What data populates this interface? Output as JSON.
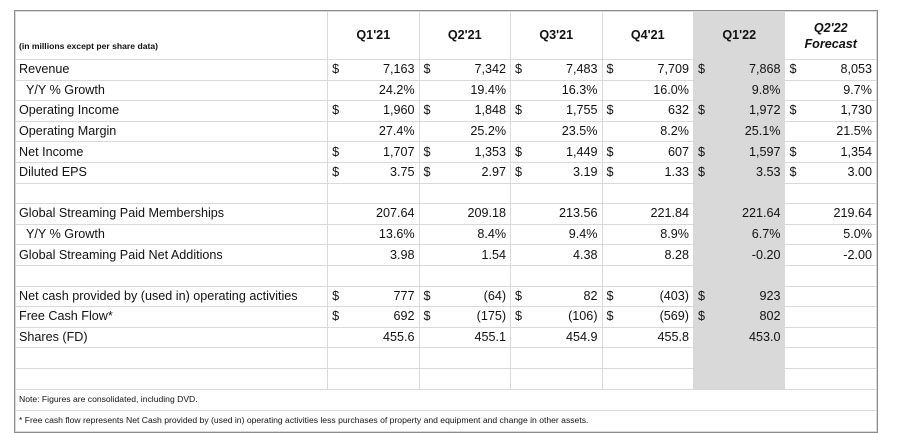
{
  "header": {
    "note": "(in millions except per share data)",
    "periods": [
      "Q1'21",
      "Q2'21",
      "Q3'21",
      "Q4'21",
      "Q1'22"
    ],
    "forecast_line1": "Q2'22",
    "forecast_line2": "Forecast"
  },
  "rows": [
    {
      "label": "Revenue",
      "cur": [
        "$",
        "$",
        "$",
        "$",
        "$",
        "$"
      ],
      "values": [
        "7,163",
        "7,342",
        "7,483",
        "7,709",
        "7,868",
        "8,053"
      ]
    },
    {
      "label": "Y/Y % Growth",
      "values": [
        "24.2%",
        "19.4%",
        "16.3%",
        "16.0%",
        "9.8%",
        "9.7%"
      ]
    },
    {
      "label": "Operating Income",
      "cur": [
        "$",
        "$",
        "$",
        "$",
        "$",
        "$"
      ],
      "values": [
        "1,960",
        "1,848",
        "1,755",
        "632",
        "1,972",
        "1,730"
      ]
    },
    {
      "label": "Operating Margin",
      "values": [
        "27.4%",
        "25.2%",
        "23.5%",
        "8.2%",
        "25.1%",
        "21.5%"
      ]
    },
    {
      "label": "Net Income",
      "cur": [
        "$",
        "$",
        "$",
        "$",
        "$",
        "$"
      ],
      "values": [
        "1,707",
        "1,353",
        "1,449",
        "607",
        "1,597",
        "1,354"
      ]
    },
    {
      "label": "Diluted EPS",
      "cur": [
        "$",
        "$",
        "$",
        "$",
        "$",
        "$"
      ],
      "values": [
        "3.75",
        "2.97",
        "3.19",
        "1.33",
        "3.53",
        "3.00"
      ]
    },
    {
      "label": "Global Streaming Paid Memberships",
      "values": [
        "207.64",
        "209.18",
        "213.56",
        "221.84",
        "221.64",
        "219.64"
      ]
    },
    {
      "label": "Y/Y % Growth",
      "values": [
        "13.6%",
        "8.4%",
        "9.4%",
        "8.9%",
        "6.7%",
        "5.0%"
      ]
    },
    {
      "label": "Global Streaming Paid Net Additions",
      "values": [
        "3.98",
        "1.54",
        "4.38",
        "8.28",
        "-0.20",
        "-2.00"
      ]
    },
    {
      "label": "Net cash provided by (used in) operating activities",
      "cur": [
        "$",
        "$",
        "$",
        "$",
        "$",
        ""
      ],
      "values": [
        "777",
        "(64)",
        "82",
        "(403)",
        "923",
        ""
      ]
    },
    {
      "label": "Free Cash Flow*",
      "cur": [
        "$",
        "$",
        "$",
        "$",
        "$",
        ""
      ],
      "values": [
        "692",
        "(175)",
        "(106)",
        "(569)",
        "802",
        ""
      ]
    },
    {
      "label": "Shares (FD)",
      "values": [
        "455.6",
        "455.1",
        "454.9",
        "455.8",
        "453.0",
        ""
      ]
    }
  ],
  "notes": {
    "note1": "Note: Figures are consolidated, including DVD.",
    "note2": "* Free cash flow represents Net Cash provided by (used in) operating activities less purchases of property and equipment and change in other assets."
  }
}
